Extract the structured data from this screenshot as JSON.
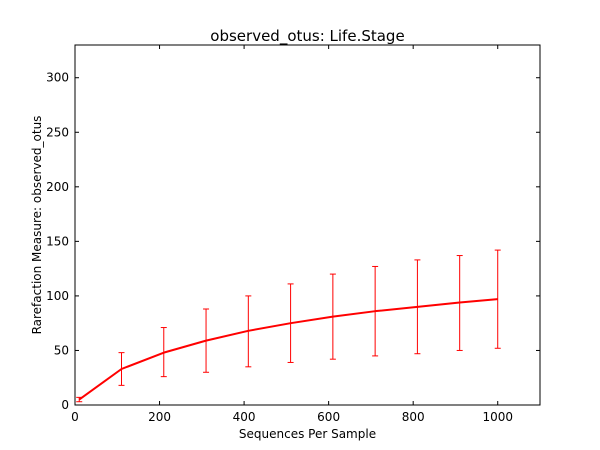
{
  "chart_data": {
    "type": "line",
    "title": "observed_otus: Life.Stage",
    "xlabel": "Sequences Per Sample",
    "ylabel": "Rarefaction Measure: observed_otus",
    "xlim": [
      0,
      1100
    ],
    "ylim": [
      0,
      330
    ],
    "xticks": [
      0,
      200,
      400,
      600,
      800,
      1000
    ],
    "yticks": [
      0,
      50,
      100,
      150,
      200,
      250,
      300
    ],
    "grid": false,
    "line_color": "#ff0000",
    "series": [
      {
        "x": [
          10,
          110,
          210,
          310,
          410,
          510,
          610,
          710,
          810,
          910,
          1000
        ],
        "y": [
          5,
          33,
          48,
          59,
          68,
          75,
          81,
          86,
          90,
          94,
          97
        ],
        "err_low": [
          3,
          18,
          26,
          30,
          35,
          39,
          42,
          45,
          47,
          50,
          52
        ],
        "err_high": [
          7,
          48,
          71,
          88,
          100,
          111,
          120,
          127,
          133,
          137,
          142
        ]
      }
    ]
  }
}
